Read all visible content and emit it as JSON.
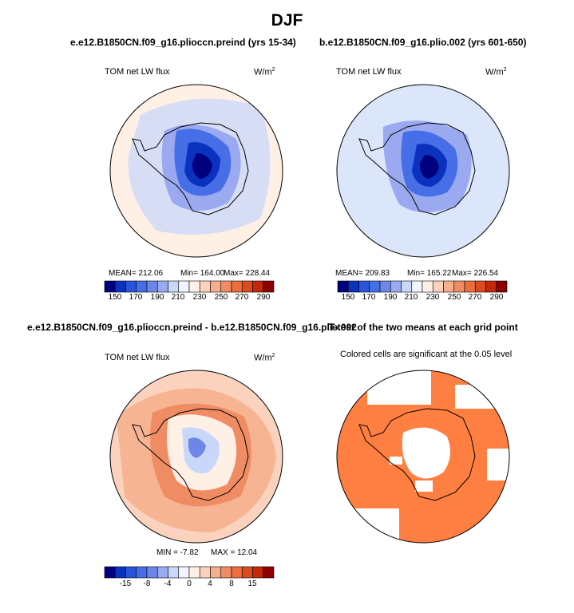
{
  "title": "DJF",
  "panels": {
    "p1": {
      "title": "e.e12.B1850CN.f09_g16.pliocсn.preind (yrs 15-34)",
      "variable": "TOM net LW flux",
      "units": "W/m",
      "units_sup": "2",
      "stats": {
        "mean": "MEAN= 212.06",
        "min": "Min= 164.00",
        "max": "Max= 228.44"
      }
    },
    "p2": {
      "title": "b.e12.B1850CN.f09_g16.plio.002 (yrs 601-650)",
      "variable": "TOM net LW flux",
      "units": "W/m",
      "units_sup": "2",
      "stats": {
        "mean": "MEAN= 209.83",
        "min": "Min= 165.22",
        "max": "Max= 226.54"
      }
    },
    "p3": {
      "title": "e.e12.B1850CN.f09_g16.pliocсn.preind - b.e12.B1850CN.f09_g16.plio.002",
      "variable": "TOM net LW flux",
      "units": "W/m",
      "units_sup": "2",
      "stats": {
        "min": "MIN = -7.82",
        "max": "MAX = 12.04"
      }
    },
    "p4": {
      "title": "T-test of the two means at each grid point",
      "note": "Colored cells are significant at the 0.05 level"
    }
  },
  "colors": {
    "abs_scale": [
      "#00007f",
      "#0a32be",
      "#2855dc",
      "#466ee6",
      "#6e87e6",
      "#9baaf0",
      "#c8d7fa",
      "#f0f5ff",
      "#fff0e6",
      "#fad2be",
      "#f5af8c",
      "#f08c64",
      "#eb6e3c",
      "#dc4b1e",
      "#c3280a",
      "#8c0000"
    ],
    "diff_scale": [
      "#00007f",
      "#0a32be",
      "#2855dc",
      "#466ee6",
      "#6e87e6",
      "#9baaf0",
      "#c8d7fa",
      "#f0f5ff",
      "#fff0e6",
      "#fad2be",
      "#f5af8c",
      "#f08c64",
      "#eb6e3c",
      "#dc4b1e",
      "#c3280a",
      "#8c0000"
    ],
    "significant": "#fe7f41"
  },
  "chart_data": [
    {
      "type": "heatmap",
      "name": "preind",
      "projection": "south-polar-stereographic",
      "title": "e.e12.B1850CN.f09_g16.pliocсn.preind (yrs 15-34)",
      "variable": "TOM net LW flux",
      "units": "W/m2",
      "colorbar_ticks": [
        "150",
        "170",
        "190",
        "210",
        "230",
        "250",
        "270",
        "290"
      ],
      "levels": [
        150,
        160,
        170,
        180,
        190,
        200,
        210,
        220,
        230,
        240,
        250,
        260,
        270,
        280,
        290
      ],
      "mean": 212.06,
      "min": 164.0,
      "max": 228.44
    },
    {
      "type": "heatmap",
      "name": "plio",
      "projection": "south-polar-stereographic",
      "title": "b.e12.B1850CN.f09_g16.plio.002 (yrs 601-650)",
      "variable": "TOM net LW flux",
      "units": "W/m2",
      "colorbar_ticks": [
        "150",
        "170",
        "190",
        "210",
        "230",
        "250",
        "270",
        "290"
      ],
      "levels": [
        150,
        160,
        170,
        180,
        190,
        200,
        210,
        220,
        230,
        240,
        250,
        260,
        270,
        280,
        290
      ],
      "mean": 209.83,
      "min": 165.22,
      "max": 226.54
    },
    {
      "type": "heatmap",
      "name": "difference",
      "projection": "south-polar-stereographic",
      "variable": "TOM net LW flux",
      "units": "W/m2",
      "colorbar_ticks": [
        "-15",
        "-8",
        "-4",
        "0",
        "4",
        "8",
        "15"
      ],
      "levels": [
        -20,
        -15,
        -10,
        -8,
        -6,
        -4,
        -2,
        0,
        2,
        4,
        6,
        8,
        10,
        15,
        20
      ],
      "min": -7.82,
      "max": 12.04
    },
    {
      "type": "heatmap",
      "name": "ttest",
      "projection": "south-polar-stereographic",
      "title": "T-test of the two means at each grid point",
      "note": "Colored cells are significant at the 0.05 level",
      "significance_level": 0.05
    }
  ]
}
